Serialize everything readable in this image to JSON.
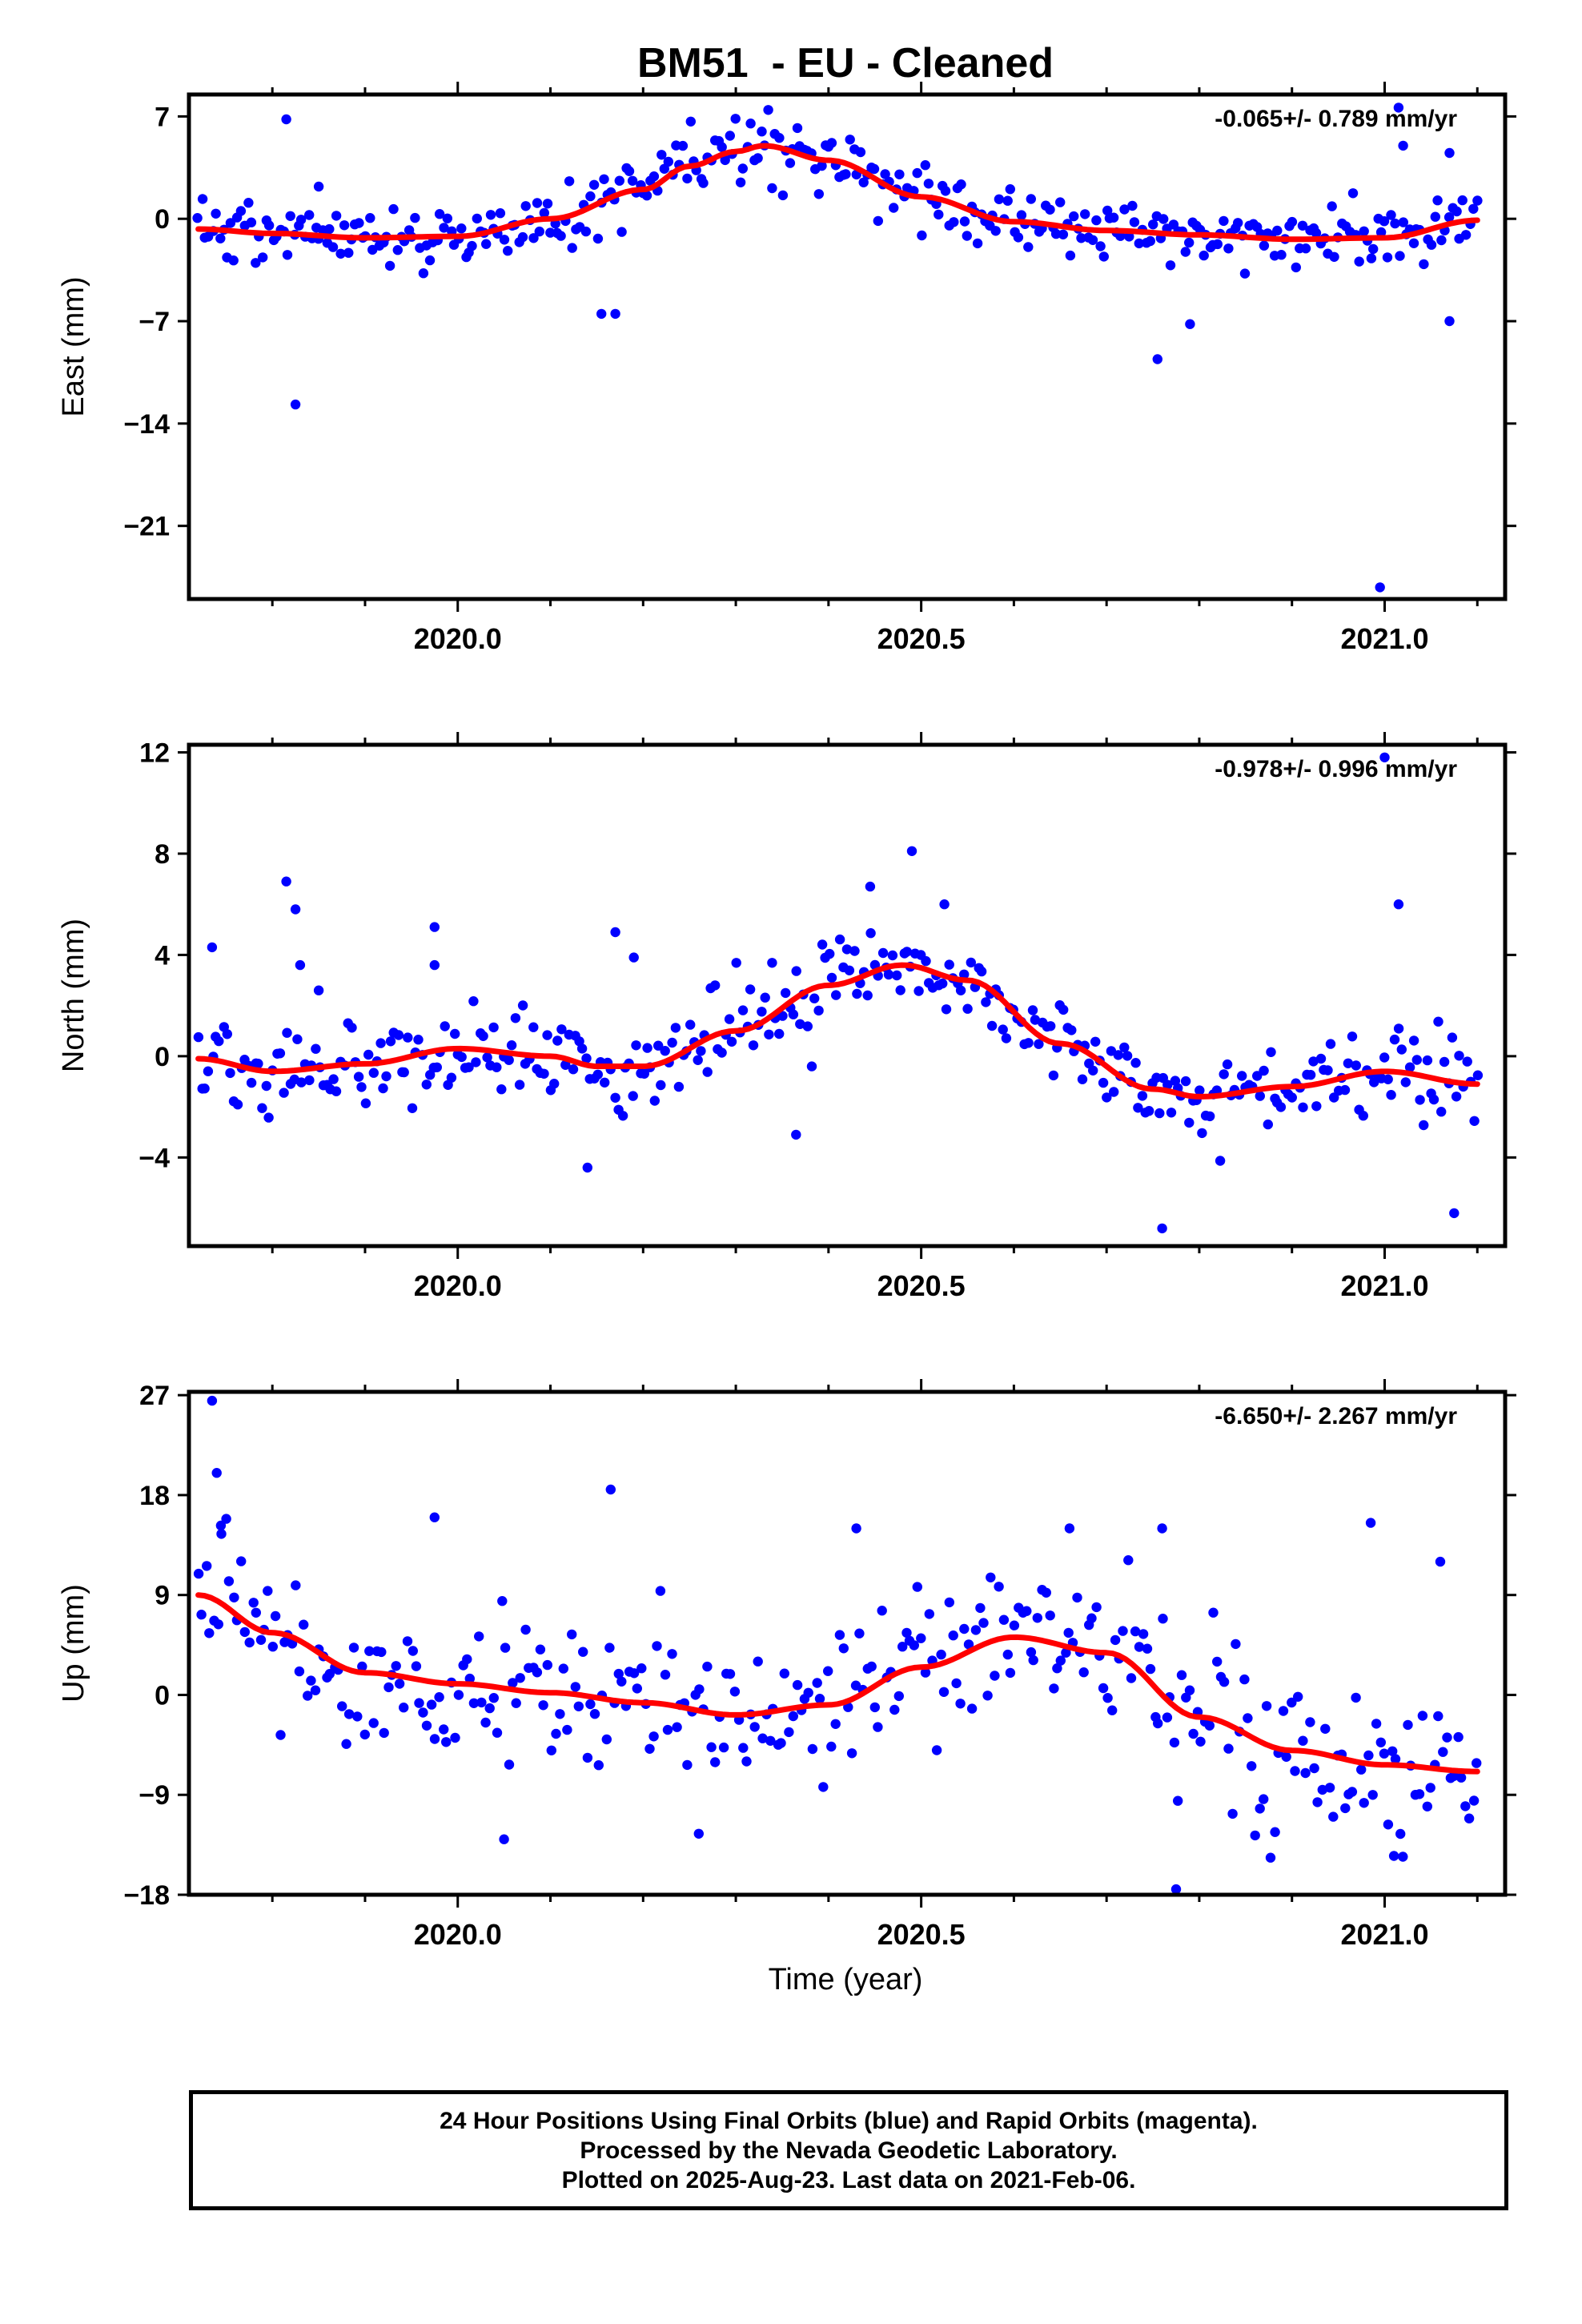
{
  "title": "BM51  - EU - Cleaned",
  "xlabel": "Time (year)",
  "footer": {
    "line1": "24 Hour Positions Using Final Orbits (blue) and Rapid Orbits (magenta).",
    "line2": "Processed by the Nevada Geodetic Laboratory.",
    "line3": "Plotted on 2025-Aug-23. Last data on 2021-Feb-06."
  },
  "colors": {
    "points": "#0000ff",
    "fit": "#ff0000",
    "frame": "#000000"
  },
  "chart_data": [
    {
      "type": "scatter",
      "name": "east",
      "ylabel": "East (mm)",
      "rate_text": "-0.065+/- 0.789 mm/yr",
      "xlim": [
        2019.71,
        2021.13
      ],
      "ylim": [
        -26,
        8.5
      ],
      "xticks": [
        2020.0,
        2020.5,
        2021.0
      ],
      "xtick_labels": [
        "2020.0",
        "2020.5",
        "2021.0"
      ],
      "yticks": [
        7,
        0,
        -7,
        -14,
        -21
      ],
      "ytick_labels": [
        "7",
        "0",
        "−7",
        "−14",
        "−21"
      ],
      "fit": {
        "x": [
          2019.72,
          2019.8,
          2019.9,
          2020.0,
          2020.1,
          2020.2,
          2020.25,
          2020.3,
          2020.33,
          2020.4,
          2020.5,
          2020.6,
          2020.7,
          2020.8,
          2020.9,
          2021.0,
          2021.1
        ],
        "y": [
          -0.7,
          -1.0,
          -1.3,
          -1.2,
          0.0,
          2.0,
          3.6,
          4.6,
          5.0,
          4.0,
          1.5,
          -0.2,
          -0.8,
          -1.1,
          -1.4,
          -1.3,
          -0.1
        ]
      },
      "outliers": {
        "x": [
          2019.815,
          2019.825,
          2019.85,
          2020.155,
          2020.17,
          2020.755,
          2020.79,
          2020.995,
          2021.015,
          2021.02,
          2021.07,
          2021.07
        ],
        "y": [
          6.8,
          -12.7,
          2.2,
          -6.5,
          -6.5,
          -9.6,
          -7.2,
          -25.2,
          7.6,
          5.0,
          -7.0,
          4.5
        ]
      },
      "noise_sd": 1.1,
      "n_points": 360
    },
    {
      "type": "scatter",
      "name": "north",
      "ylabel": "North (mm)",
      "rate_text": "-0.978+/- 0.996 mm/yr",
      "xlim": [
        2019.71,
        2021.13
      ],
      "ylim": [
        -7.5,
        12.3
      ],
      "xticks": [
        2020.0,
        2020.5,
        2021.0
      ],
      "xtick_labels": [
        "2020.0",
        "2020.5",
        "2021.0"
      ],
      "yticks": [
        12,
        8,
        4,
        0,
        -4
      ],
      "ytick_labels": [
        "12",
        "8",
        "4",
        "0",
        "−4"
      ],
      "fit": {
        "x": [
          2019.72,
          2019.8,
          2019.9,
          2020.0,
          2020.1,
          2020.15,
          2020.2,
          2020.3,
          2020.4,
          2020.48,
          2020.55,
          2020.65,
          2020.75,
          2020.8,
          2020.9,
          2021.0,
          2021.1
        ],
        "y": [
          -0.1,
          -0.6,
          -0.3,
          0.3,
          0.0,
          -0.4,
          -0.4,
          1.0,
          2.8,
          3.6,
          3.0,
          0.5,
          -1.3,
          -1.6,
          -1.2,
          -0.6,
          -1.1
        ]
      },
      "outliers": {
        "x": [
          2019.735,
          2019.815,
          2019.825,
          2019.83,
          2019.85,
          2019.975,
          2019.975,
          2020.14,
          2020.17,
          2020.19,
          2020.365,
          2020.445,
          2020.49,
          2020.525,
          2020.76,
          2021.0,
          2021.015,
          2021.075
        ],
        "y": [
          4.3,
          6.9,
          5.8,
          3.6,
          2.6,
          5.1,
          3.6,
          -4.4,
          4.9,
          3.9,
          -3.1,
          6.7,
          8.1,
          6.0,
          -6.8,
          11.8,
          6.0,
          -6.2
        ]
      },
      "noise_sd": 0.85,
      "n_points": 360
    },
    {
      "type": "scatter",
      "name": "up",
      "ylabel": "Up (mm)",
      "rate_text": "-6.650+/- 2.267 mm/yr",
      "xlim": [
        2019.71,
        2021.13
      ],
      "ylim": [
        -18,
        27.3
      ],
      "xticks": [
        2020.0,
        2020.5,
        2021.0
      ],
      "xtick_labels": [
        "2020.0",
        "2020.5",
        "2021.0"
      ],
      "yticks": [
        27,
        18,
        9,
        0,
        -9,
        -18
      ],
      "ytick_labels": [
        "27",
        "18",
        "9",
        "0",
        "−9",
        "−18"
      ],
      "fit": {
        "x": [
          2019.72,
          2019.8,
          2019.9,
          2020.0,
          2020.1,
          2020.2,
          2020.3,
          2020.4,
          2020.5,
          2020.6,
          2020.7,
          2020.8,
          2020.9,
          2021.0,
          2021.1
        ],
        "y": [
          9.0,
          5.6,
          2.0,
          1.0,
          0.2,
          -0.7,
          -1.8,
          -0.9,
          2.5,
          5.2,
          3.8,
          -2.0,
          -5.0,
          -6.3,
          -6.9
        ]
      },
      "outliers": {
        "x": [
          2019.735,
          2019.74,
          2019.745,
          2019.975,
          2020.05,
          2020.165,
          2020.26,
          2020.43,
          2020.66,
          2020.76,
          2020.775,
          2020.985,
          2021.01,
          2021.06
        ],
        "y": [
          26.5,
          20.0,
          14.5,
          16.0,
          -13.0,
          18.5,
          -12.5,
          15.0,
          15.0,
          15.0,
          -17.5,
          15.5,
          -14.5,
          12.0
        ]
      },
      "noise_sd": 3.4,
      "n_points": 330
    }
  ]
}
